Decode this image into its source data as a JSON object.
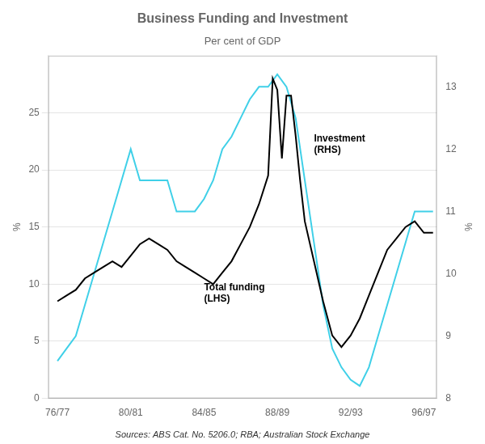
{
  "chart_data": {
    "type": "line",
    "title": "Business Funding and Investment",
    "subtitle": "Per cent of GDP",
    "source": "Sources: ABS Cat. No. 5206.0; RBA; Australian Stock Exchange",
    "y_label": "%",
    "y2_label": "%",
    "xlim": [
      1976.0,
      1997.2
    ],
    "xticks": [
      {
        "value": 1976.5,
        "label": "76/77"
      },
      {
        "value": 1980.5,
        "label": "80/81"
      },
      {
        "value": 1984.5,
        "label": "84/85"
      },
      {
        "value": 1988.5,
        "label": "88/89"
      },
      {
        "value": 1992.5,
        "label": "92/93"
      },
      {
        "value": 1996.5,
        "label": "96/97"
      }
    ],
    "ylim": [
      0,
      30
    ],
    "yticks": [
      0,
      5,
      10,
      15,
      20,
      25
    ],
    "y2lim": [
      8,
      13.5
    ],
    "y2ticks": [
      8,
      9,
      10,
      11,
      12,
      13
    ],
    "grid": true,
    "annotations": [
      {
        "text": "Investment\n(RHS)",
        "x": 1990.5,
        "y": 21.5
      },
      {
        "text": "Total funding\n(LHS)",
        "x": 1984.5,
        "y": 8.5
      }
    ],
    "series": [
      {
        "color": "#000000",
        "axis": "y",
        "x": [
          1976.5,
          1977.0,
          1977.5,
          1978.0,
          1978.5,
          1979.0,
          1979.5,
          1980.0,
          1980.5,
          1981.0,
          1981.5,
          1982.0,
          1982.5,
          1983.0,
          1983.5,
          1984.0,
          1984.5,
          1985.0,
          1985.5,
          1986.0,
          1986.5,
          1987.0,
          1987.5,
          1988.0,
          1988.25,
          1988.5,
          1988.75,
          1989.0,
          1989.25,
          1989.5,
          1989.75,
          1990.0,
          1990.5,
          1991.0,
          1991.5,
          1992.0,
          1992.5,
          1993.0,
          1993.5,
          1994.0,
          1994.5,
          1995.0,
          1995.5,
          1996.0,
          1996.5,
          1997.0
        ],
        "values": [
          8.5,
          9.0,
          9.5,
          10.5,
          11.0,
          11.5,
          12.0,
          11.5,
          12.5,
          13.5,
          14.0,
          13.5,
          13.0,
          12.0,
          11.5,
          11.0,
          10.5,
          10.0,
          11.0,
          12.0,
          13.5,
          15.0,
          17.0,
          19.5,
          28.0,
          27.0,
          21.0,
          26.5,
          26.5,
          23.0,
          19.0,
          15.5,
          12.0,
          8.5,
          5.5,
          4.5,
          5.5,
          7.0,
          9.0,
          11.0,
          13.0,
          14.0,
          15.0,
          15.5,
          14.5,
          14.5
        ]
      },
      {
        "color": "#40d0e8",
        "axis": "y2",
        "x": [
          1976.5,
          1977.0,
          1977.5,
          1978.0,
          1978.5,
          1979.0,
          1979.5,
          1980.0,
          1980.5,
          1981.0,
          1981.5,
          1982.0,
          1982.5,
          1983.0,
          1983.5,
          1984.0,
          1984.5,
          1985.0,
          1985.5,
          1986.0,
          1986.5,
          1987.0,
          1987.5,
          1988.0,
          1988.5,
          1989.0,
          1989.5,
          1990.0,
          1990.5,
          1991.0,
          1991.5,
          1992.0,
          1992.5,
          1993.0,
          1993.5,
          1994.0,
          1994.5,
          1995.0,
          1995.5,
          1996.0,
          1996.5,
          1997.0
        ],
        "values": [
          8.6,
          8.8,
          9.0,
          9.5,
          10.0,
          10.5,
          11.0,
          11.5,
          12.0,
          11.5,
          11.5,
          11.5,
          11.5,
          11.0,
          11.0,
          11.0,
          11.2,
          11.5,
          12.0,
          12.2,
          12.5,
          12.8,
          13.0,
          13.0,
          13.2,
          13.0,
          12.5,
          11.5,
          10.5,
          9.5,
          8.8,
          8.5,
          8.3,
          8.2,
          8.5,
          9.0,
          9.5,
          10.0,
          10.5,
          11.0,
          11.0,
          11.0
        ]
      }
    ]
  }
}
